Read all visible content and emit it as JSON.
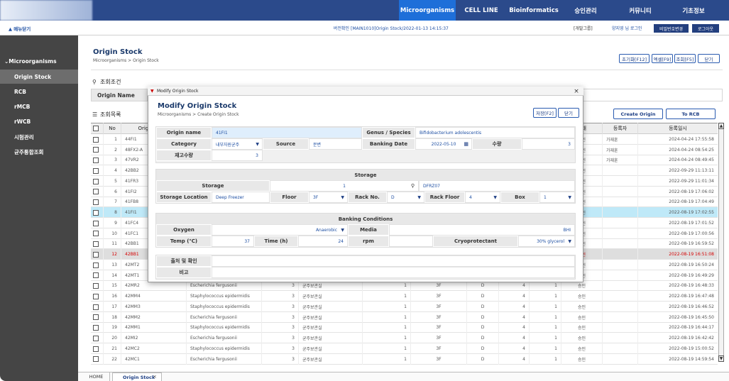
{
  "nav": {
    "items": [
      "Microorganisms",
      "CELL LINE",
      "Bioinformatics",
      "승인관리",
      "커뮤니티",
      "기초정보"
    ]
  },
  "subbar": {
    "toggle": "▲ 메뉴닫기",
    "version": "버전확인  [MAIN1010]Origin Stock/2022-01-13 14:15:37",
    "group": "[개발그룹]",
    "user": "양지영 님 로그인",
    "buttons": [
      "비밀번호변경",
      "로그아웃"
    ]
  },
  "sidebar": {
    "section": "Microorganisms",
    "items": [
      "Origin Stock",
      "RCB",
      "rMCB",
      "rWCB",
      "시험관리",
      "균주통합조회"
    ]
  },
  "page": {
    "title": "Origin Stock",
    "breadcrumb": "Microorganisms > Origin Stock",
    "buttons": [
      "초기화[F12]",
      "엑셀[F9]",
      "조회[F5]",
      "닫기"
    ]
  },
  "search": {
    "title": "조회조건",
    "label": "Origin Name"
  },
  "list": {
    "title": "조회목록",
    "buttons": [
      "Create Origin",
      "To RCB"
    ],
    "columns": [
      "No",
      "Origin Name",
      null,
      null,
      null,
      null,
      null,
      null,
      null,
      null,
      "상태",
      "등록자",
      "등록일시"
    ],
    "rows": [
      [
        1,
        "44FI1",
        null,
        null,
        null,
        null,
        null,
        null,
        null,
        null,
        "승인",
        "가재훈",
        "2024-04-24 17:55:58"
      ],
      [
        2,
        "48FX2-A",
        null,
        null,
        null,
        null,
        null,
        null,
        null,
        null,
        "승인",
        "가재훈",
        "2024-04-24 08:54:25"
      ],
      [
        3,
        "47VR2",
        null,
        null,
        null,
        null,
        null,
        null,
        null,
        null,
        "승인",
        "가재훈",
        "2024-04-24 08:49:45"
      ],
      [
        4,
        "42BB2",
        null,
        null,
        null,
        null,
        null,
        null,
        null,
        null,
        "승인",
        null,
        "2022-09-29 11:13:11"
      ],
      [
        5,
        "41FR3",
        null,
        null,
        null,
        null,
        null,
        null,
        null,
        null,
        "승인",
        null,
        "2022-09-29 11:01:34"
      ],
      [
        6,
        "41FI2",
        null,
        null,
        null,
        null,
        null,
        null,
        null,
        null,
        "승인",
        null,
        "2022-08-19 17:06:02"
      ],
      [
        7,
        "41FB8",
        null,
        null,
        null,
        null,
        null,
        null,
        null,
        null,
        "승인",
        null,
        "2022-08-19 17:04:49"
      ],
      [
        8,
        "41FI1",
        null,
        null,
        null,
        null,
        null,
        null,
        null,
        null,
        "승인",
        null,
        "2022-08-19 17:02:55"
      ],
      [
        9,
        "41FC4",
        null,
        null,
        null,
        null,
        null,
        null,
        null,
        null,
        "승인",
        null,
        "2022-08-19 17:01:52"
      ],
      [
        10,
        "41FC1",
        null,
        null,
        null,
        null,
        null,
        null,
        null,
        null,
        "승인",
        null,
        "2022-08-19 17:00:56"
      ],
      [
        11,
        "42BB1",
        null,
        null,
        null,
        null,
        null,
        null,
        null,
        null,
        "승인",
        null,
        "2022-08-19 16:59:52"
      ],
      [
        12,
        "42BB1",
        null,
        null,
        null,
        null,
        null,
        null,
        null,
        null,
        "승인",
        null,
        "2022-08-19 16:51:08"
      ],
      [
        13,
        "42MT2",
        null,
        null,
        null,
        null,
        null,
        null,
        null,
        null,
        "승인",
        null,
        "2022-08-19 16:50:24"
      ],
      [
        14,
        "42MT1",
        null,
        null,
        null,
        null,
        null,
        null,
        null,
        null,
        "승인",
        null,
        "2022-08-19 16:49:29"
      ],
      [
        15,
        "42MR2",
        "Escherichia fergusonii",
        3,
        "균주보관실",
        1,
        "3F",
        "D",
        4,
        1,
        "승인",
        null,
        "2022-08-19 16:48:33"
      ],
      [
        16,
        "42MM4",
        "Staphylococcus epidermidis",
        3,
        "균주보관실",
        1,
        "3F",
        "D",
        4,
        1,
        "승인",
        null,
        "2022-08-19 16:47:48"
      ],
      [
        17,
        "42MM3",
        "Staphylococcus epidermidis",
        3,
        "균주보관실",
        1,
        "3F",
        "D",
        4,
        1,
        "승인",
        null,
        "2022-08-19 16:46:52"
      ],
      [
        18,
        "42MM2",
        "Escherichia fergusonii",
        3,
        "균주보관실",
        1,
        "3F",
        "D",
        4,
        1,
        "승인",
        null,
        "2022-08-19 16:45:50"
      ],
      [
        19,
        "42MM1",
        "Staphylococcus epidermidis",
        3,
        "균주보관실",
        1,
        "3F",
        "D",
        4,
        1,
        "승인",
        null,
        "2022-08-19 16:44:17"
      ],
      [
        20,
        "42MI2",
        "Escherichia fergusonii",
        3,
        "균주보관실",
        1,
        "3F",
        "D",
        4,
        1,
        "승인",
        null,
        "2022-08-19 16:42:42"
      ],
      [
        21,
        "42MC2",
        "Staphylococcus epidermidis",
        3,
        "균주보관실",
        1,
        "3F",
        "D",
        4,
        1,
        "승인",
        null,
        "2022-08-19 15:00:52"
      ],
      [
        22,
        "42MC1",
        "Escherichia fergusonii",
        3,
        "균주보관실",
        1,
        "3F",
        "D",
        4,
        1,
        "승인",
        null,
        "2022-08-19 14:59:54"
      ]
    ]
  },
  "modal": {
    "window_title": "Modify Origin Stock",
    "title": "Modify Origin Stock",
    "breadcrumb": "Microorganisms > Create Origin Stock",
    "buttons": [
      "저장[F2]",
      "닫기"
    ],
    "basic": [
      {
        "label": "Origin name",
        "value": "41FI1"
      },
      {
        "label": "Genus / Species",
        "value": "Bifidobacterium adolescentis"
      },
      {
        "label": "Category",
        "value": "내부자원균주"
      },
      {
        "label": "Source",
        "value": "분변"
      },
      {
        "label": "Banking Date",
        "value": "2022-05-10"
      },
      {
        "label": "수량",
        "value": 3
      },
      {
        "label": "재고수량",
        "value": 3
      }
    ],
    "storage": {
      "title": "Storage",
      "fields": [
        {
          "label": "Storage",
          "value": 1,
          "code": "DFRZ07"
        },
        {
          "label": "Storage Location",
          "value": "Deep Freezer"
        },
        {
          "label": "Floor",
          "value": "3F"
        },
        {
          "label": "Rack No.",
          "value": "D"
        },
        {
          "label": "Rack Floor",
          "value": 4
        },
        {
          "label": "Box",
          "value": 1
        }
      ]
    },
    "banking": {
      "title": "Banking Conditions",
      "fields": [
        {
          "label": "Oxygen",
          "value": "Anaerobic"
        },
        {
          "label": "Media",
          "value": "BHI"
        },
        {
          "label": "Temp (℃)",
          "value": 37
        },
        {
          "label": "Time (h)",
          "value": 24
        },
        {
          "label": "rpm",
          "value": null
        },
        {
          "label": "Cryoprotectant",
          "value": "30% glycerol"
        }
      ]
    },
    "notes": [
      {
        "label": "출처 및 확인",
        "value": null
      },
      {
        "label": "비고",
        "value": null
      }
    ]
  },
  "tabs": [
    "HOME",
    "Origin Stock"
  ]
}
